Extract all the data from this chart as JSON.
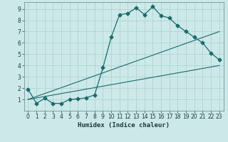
{
  "title": "",
  "xlabel": "Humidex (Indice chaleur)",
  "ylabel": "",
  "bg_color": "#cce8e8",
  "grid_color": "#b0d8d8",
  "line_color": "#1a6b6b",
  "xlim": [
    -0.5,
    23.5
  ],
  "ylim": [
    0.0,
    9.6
  ],
  "xticks": [
    0,
    1,
    2,
    3,
    4,
    5,
    6,
    7,
    8,
    9,
    10,
    11,
    12,
    13,
    14,
    15,
    16,
    17,
    18,
    19,
    20,
    21,
    22,
    23
  ],
  "yticks": [
    1,
    2,
    3,
    4,
    5,
    6,
    7,
    8,
    9
  ],
  "series1_x": [
    0,
    1,
    2,
    3,
    4,
    5,
    6,
    7,
    8,
    9,
    10,
    11,
    12,
    13,
    14,
    15,
    16,
    17,
    18,
    19,
    20,
    21,
    22,
    23
  ],
  "series1_y": [
    1.9,
    0.65,
    1.1,
    0.65,
    0.65,
    1.0,
    1.05,
    1.15,
    1.4,
    3.8,
    6.5,
    8.5,
    8.6,
    9.1,
    8.5,
    9.2,
    8.4,
    8.2,
    7.5,
    7.0,
    6.5,
    6.0,
    5.1,
    4.5
  ],
  "series2_x": [
    0,
    23
  ],
  "series2_y": [
    1.0,
    7.0
  ],
  "series3_x": [
    0,
    23
  ],
  "series3_y": [
    1.0,
    4.0
  ],
  "marker": "D",
  "marker_size": 2.5
}
